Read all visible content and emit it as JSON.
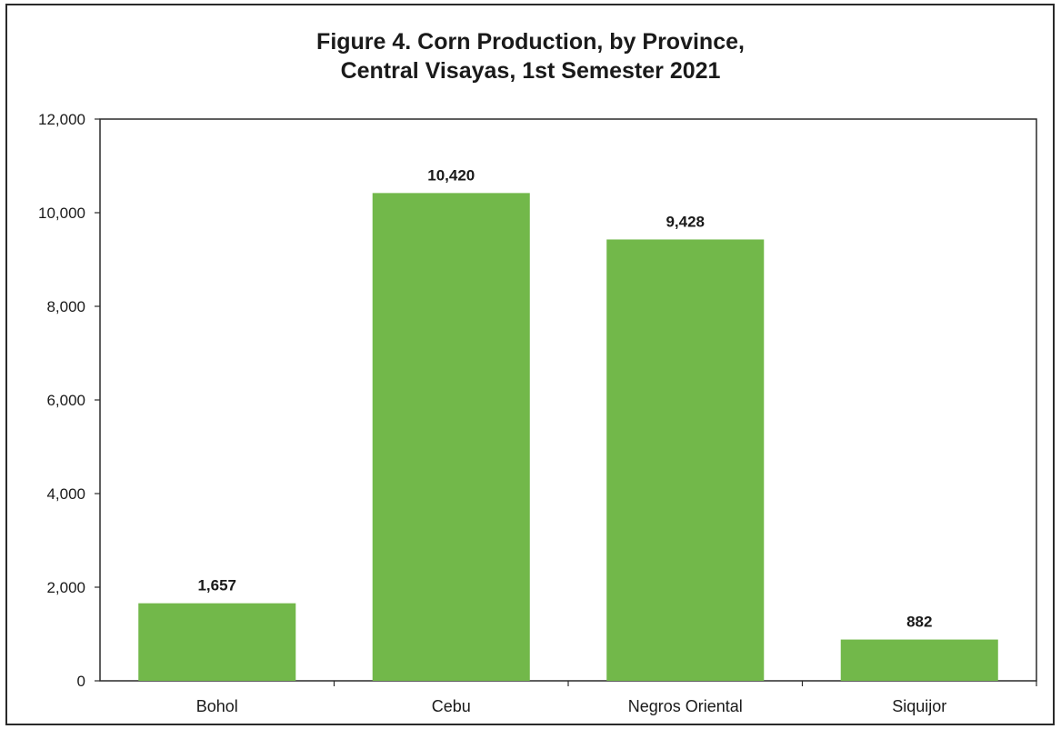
{
  "chart_data": {
    "type": "bar",
    "title_lines": [
      "Figure 4. Corn Production, by Province,",
      "Central Visayas, 1st Semester 2021"
    ],
    "categories": [
      "Bohol",
      "Cebu",
      "Negros Oriental",
      "Siquijor"
    ],
    "values": [
      1657,
      10420,
      9428,
      882
    ],
    "data_labels": [
      "1,657",
      "10,420",
      "9,428",
      "882"
    ],
    "yticks": [
      0,
      2000,
      4000,
      6000,
      8000,
      10000,
      12000
    ],
    "ytick_labels": [
      "0",
      "2,000",
      "4,000",
      "6,000",
      "8,000",
      "10,000",
      "12,000"
    ],
    "ylim": [
      0,
      12000
    ],
    "xlabel": "",
    "ylabel": "",
    "grid": false,
    "legend": "none",
    "bar_color": "#72b84a"
  }
}
